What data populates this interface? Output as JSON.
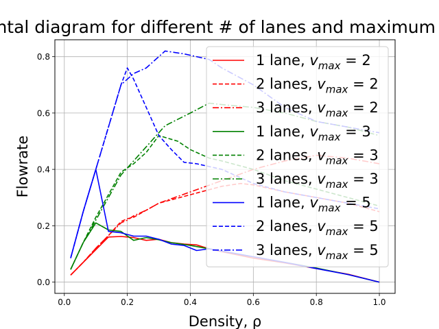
{
  "chart_data": {
    "type": "line",
    "title": "Fundamental diagram for different # of lanes and maximum velocities",
    "xlabel": "Density, ρ",
    "ylabel": "Flowrate",
    "xlim": [
      -0.03,
      1.05
    ],
    "ylim": [
      -0.04,
      0.86
    ],
    "x_ticks": [
      0.0,
      0.2,
      0.4,
      0.6,
      0.8,
      1.0
    ],
    "x_tick_labels": [
      "0.0",
      "0.2",
      "0.4",
      "0.6",
      "0.8",
      "1.0"
    ],
    "y_ticks": [
      0.0,
      0.2,
      0.4,
      0.6,
      0.8
    ],
    "y_tick_labels": [
      "0.0",
      "0.2",
      "0.4",
      "0.6",
      "0.8"
    ],
    "grid": true,
    "legend_position": "right",
    "legend_alpha": 0.8,
    "series": [
      {
        "name": "1 lane, v_max = 2",
        "legend_text": "1 lane, ",
        "legend_v": "2",
        "color": "#ff0000",
        "style": "solid",
        "x": [
          0.02,
          0.06,
          0.1,
          0.14,
          0.18,
          0.2,
          0.22,
          0.26,
          0.3,
          0.34,
          0.38,
          0.42,
          0.46,
          0.5,
          0.6,
          0.7,
          0.8,
          0.9,
          1.0
        ],
        "y": [
          0.025,
          0.07,
          0.115,
          0.16,
          0.162,
          0.16,
          0.158,
          0.148,
          0.152,
          0.14,
          0.135,
          0.132,
          0.118,
          0.108,
          0.085,
          0.068,
          0.048,
          0.028,
          0.0
        ]
      },
      {
        "name": "2 lanes, v_max = 2",
        "legend_text": "2 lanes, ",
        "legend_v": "2",
        "color": "#ff0000",
        "style": "dashed",
        "x": [
          0.02,
          0.06,
          0.1,
          0.14,
          0.18,
          0.2,
          0.22,
          0.26,
          0.3,
          0.4,
          0.5,
          0.56,
          0.6,
          0.7,
          0.8,
          0.9,
          1.0
        ],
        "y": [
          0.025,
          0.07,
          0.12,
          0.165,
          0.215,
          0.225,
          0.23,
          0.255,
          0.28,
          0.31,
          0.34,
          0.35,
          0.345,
          0.32,
          0.3,
          0.28,
          0.25
        ]
      },
      {
        "name": "3 lanes, v_max = 2",
        "legend_text": "3 lanes, ",
        "legend_v": "2",
        "color": "#ff0000",
        "style": "dashdot",
        "x": [
          0.02,
          0.06,
          0.1,
          0.14,
          0.18,
          0.2,
          0.22,
          0.26,
          0.3,
          0.4,
          0.5,
          0.6,
          0.7,
          0.8,
          0.9,
          1.0
        ],
        "y": [
          0.025,
          0.07,
          0.12,
          0.165,
          0.21,
          0.22,
          0.235,
          0.255,
          0.28,
          0.32,
          0.36,
          0.4,
          0.43,
          0.45,
          0.44,
          0.42
        ]
      },
      {
        "name": "1 lane, v_max = 3",
        "legend_text": "1 lane, ",
        "legend_v": "3",
        "color": "#008000",
        "style": "solid",
        "x": [
          0.02,
          0.06,
          0.1,
          0.14,
          0.18,
          0.22,
          0.26,
          0.3,
          0.34,
          0.4,
          0.5,
          0.6,
          0.7,
          0.8,
          0.9,
          1.0
        ],
        "y": [
          0.045,
          0.14,
          0.21,
          0.185,
          0.18,
          0.148,
          0.158,
          0.15,
          0.14,
          0.13,
          0.11,
          0.09,
          0.07,
          0.05,
          0.027,
          0.0
        ]
      },
      {
        "name": "2 lanes, v_max = 3",
        "legend_text": "2 lanes, ",
        "legend_v": "3",
        "color": "#008000",
        "style": "dashed",
        "x": [
          0.02,
          0.06,
          0.1,
          0.14,
          0.18,
          0.22,
          0.26,
          0.3,
          0.36,
          0.4,
          0.46,
          0.5,
          0.6,
          0.7,
          0.8,
          0.9,
          1.0
        ],
        "y": [
          0.045,
          0.14,
          0.23,
          0.31,
          0.39,
          0.42,
          0.46,
          0.52,
          0.5,
          0.47,
          0.44,
          0.43,
          0.4,
          0.36,
          0.33,
          0.3,
          0.27
        ]
      },
      {
        "name": "3 lanes, v_max = 3",
        "legend_text": "3 lanes, ",
        "legend_v": "3",
        "color": "#008000",
        "style": "dashdot",
        "x": [
          0.02,
          0.06,
          0.1,
          0.14,
          0.18,
          0.22,
          0.26,
          0.32,
          0.4,
          0.46,
          0.5,
          0.6,
          0.7,
          0.8,
          0.9,
          1.0
        ],
        "y": [
          0.045,
          0.14,
          0.22,
          0.3,
          0.38,
          0.43,
          0.48,
          0.555,
          0.6,
          0.635,
          0.63,
          0.62,
          0.6,
          0.57,
          0.55,
          0.52
        ]
      },
      {
        "name": "1 lane, v_max = 5",
        "legend_text": "1 lane, ",
        "legend_v": "5",
        "color": "#0000ff",
        "style": "solid",
        "x": [
          0.02,
          0.06,
          0.1,
          0.14,
          0.18,
          0.22,
          0.26,
          0.3,
          0.34,
          0.38,
          0.42,
          0.46,
          0.5,
          0.6,
          0.7,
          0.8,
          0.9,
          1.0
        ],
        "y": [
          0.085,
          0.25,
          0.4,
          0.18,
          0.175,
          0.163,
          0.163,
          0.152,
          0.135,
          0.13,
          0.112,
          0.118,
          0.11,
          0.09,
          0.07,
          0.048,
          0.027,
          0.0
        ]
      },
      {
        "name": "2 lanes, v_max = 5",
        "legend_text": "2 lanes, ",
        "legend_v": "5",
        "color": "#0000ff",
        "style": "dashed",
        "x": [
          0.02,
          0.06,
          0.1,
          0.14,
          0.18,
          0.2,
          0.22,
          0.26,
          0.3,
          0.34,
          0.38,
          0.42,
          0.46,
          0.5,
          0.6,
          0.7,
          0.8,
          0.9,
          1.0
        ],
        "y": [
          0.085,
          0.25,
          0.4,
          0.55,
          0.7,
          0.76,
          0.72,
          0.62,
          0.52,
          0.47,
          0.425,
          0.42,
          0.41,
          0.4,
          0.35,
          0.32,
          0.3,
          0.28,
          0.26
        ]
      },
      {
        "name": "3 lanes, v_max = 5",
        "legend_text": "3 lanes, ",
        "legend_v": "5",
        "color": "#0000ff",
        "style": "dashdot",
        "x": [
          0.02,
          0.06,
          0.1,
          0.14,
          0.18,
          0.22,
          0.26,
          0.32,
          0.38,
          0.46,
          0.5,
          0.6,
          0.7,
          0.8,
          0.9,
          1.0
        ],
        "y": [
          0.085,
          0.25,
          0.4,
          0.55,
          0.7,
          0.74,
          0.76,
          0.82,
          0.81,
          0.79,
          0.76,
          0.7,
          0.62,
          0.57,
          0.55,
          0.53
        ]
      }
    ]
  }
}
